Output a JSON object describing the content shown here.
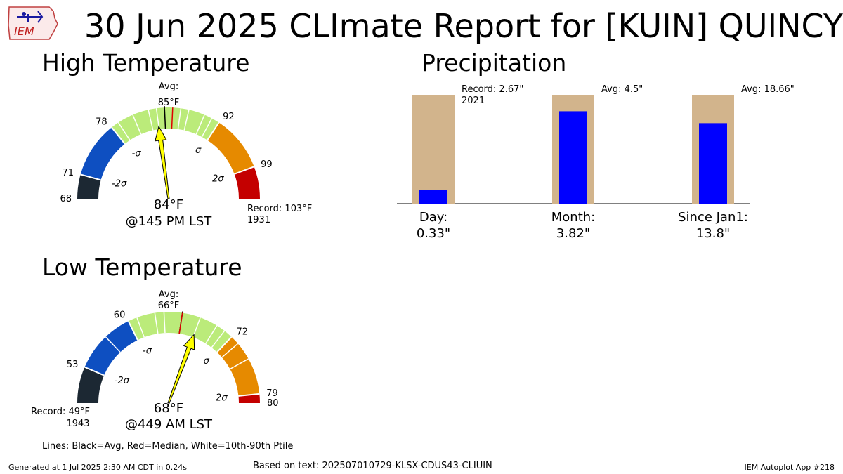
{
  "title": "30 Jun 2025 CLImate Report for [KUIN] QUINCY",
  "logo_text": "IEM",
  "high": {
    "title": "High Temperature",
    "avg_label": "Avg:",
    "avg_value": "85°F",
    "value_text": "84°F",
    "time_text": "@145 PM LST",
    "record_text": "Record: 103°F",
    "record_year": "1931",
    "range": [
      68,
      103
    ],
    "avg": 85,
    "median": 86,
    "observed": 84,
    "band_edges": [
      68,
      71,
      78,
      92,
      99,
      103
    ],
    "band_colors": [
      "#1c2833",
      "#0e4fc1",
      "#bbeb7a",
      "#e68a00",
      "#c40000"
    ],
    "edge_labels": [
      "68",
      "71",
      "78",
      "92",
      "99"
    ],
    "sigma_labels": [
      "-2σ",
      "-σ",
      "σ",
      "2σ"
    ],
    "percentile_lines": [
      79,
      81,
      83,
      84,
      87,
      88,
      90,
      91
    ]
  },
  "low": {
    "title": "Low Temperature",
    "avg_label": "Avg:",
    "avg_value": "66°F",
    "value_text": "68°F",
    "time_text": "@449 AM LST",
    "record_text": "Record: 49°F",
    "record_year": "1943",
    "range": [
      49,
      80
    ],
    "avg": 66,
    "median": 66,
    "observed": 68,
    "band_edges": [
      49,
      53,
      60,
      72,
      79,
      80
    ],
    "band_colors": [
      "#1c2833",
      "#0e4fc1",
      "#bbeb7a",
      "#e68a00",
      "#c40000"
    ],
    "edge_labels": [
      "53",
      "60",
      "72",
      "79",
      "80"
    ],
    "sigma_labels": [
      "-2σ",
      "-σ",
      "σ",
      "2σ"
    ],
    "percentile_lines": [
      57,
      61,
      63,
      64,
      68,
      70,
      71,
      73,
      75
    ]
  },
  "precip": {
    "title": "Precipitation",
    "bars": [
      {
        "label": "Day:",
        "value_text": "0.33\"",
        "observed": 0.33,
        "ref": 2.67,
        "note": "Record: 2.67\"",
        "note2": "2021"
      },
      {
        "label": "Month:",
        "value_text": "3.82\"",
        "observed": 3.82,
        "ref": 4.5,
        "note": "Avg: 4.5\"",
        "note2": ""
      },
      {
        "label": "Since Jan1:",
        "value_text": "13.8\"",
        "observed": 13.8,
        "ref": 18.66,
        "note": "Avg: 18.66\"",
        "note2": ""
      }
    ],
    "colors": {
      "observed": "#0000ff",
      "reference": "#d2b48c"
    }
  },
  "lines_note": "Lines: Black=Avg, Red=Median, White=10th-90th Ptile",
  "footer": {
    "generated": "Generated at 1 Jul 2025 2:30 AM CDT in 0.24s",
    "based_on": "Based on text: 202507010729-KLSX-CDUS43-CLIUIN",
    "app": "IEM Autoplot App #218"
  }
}
